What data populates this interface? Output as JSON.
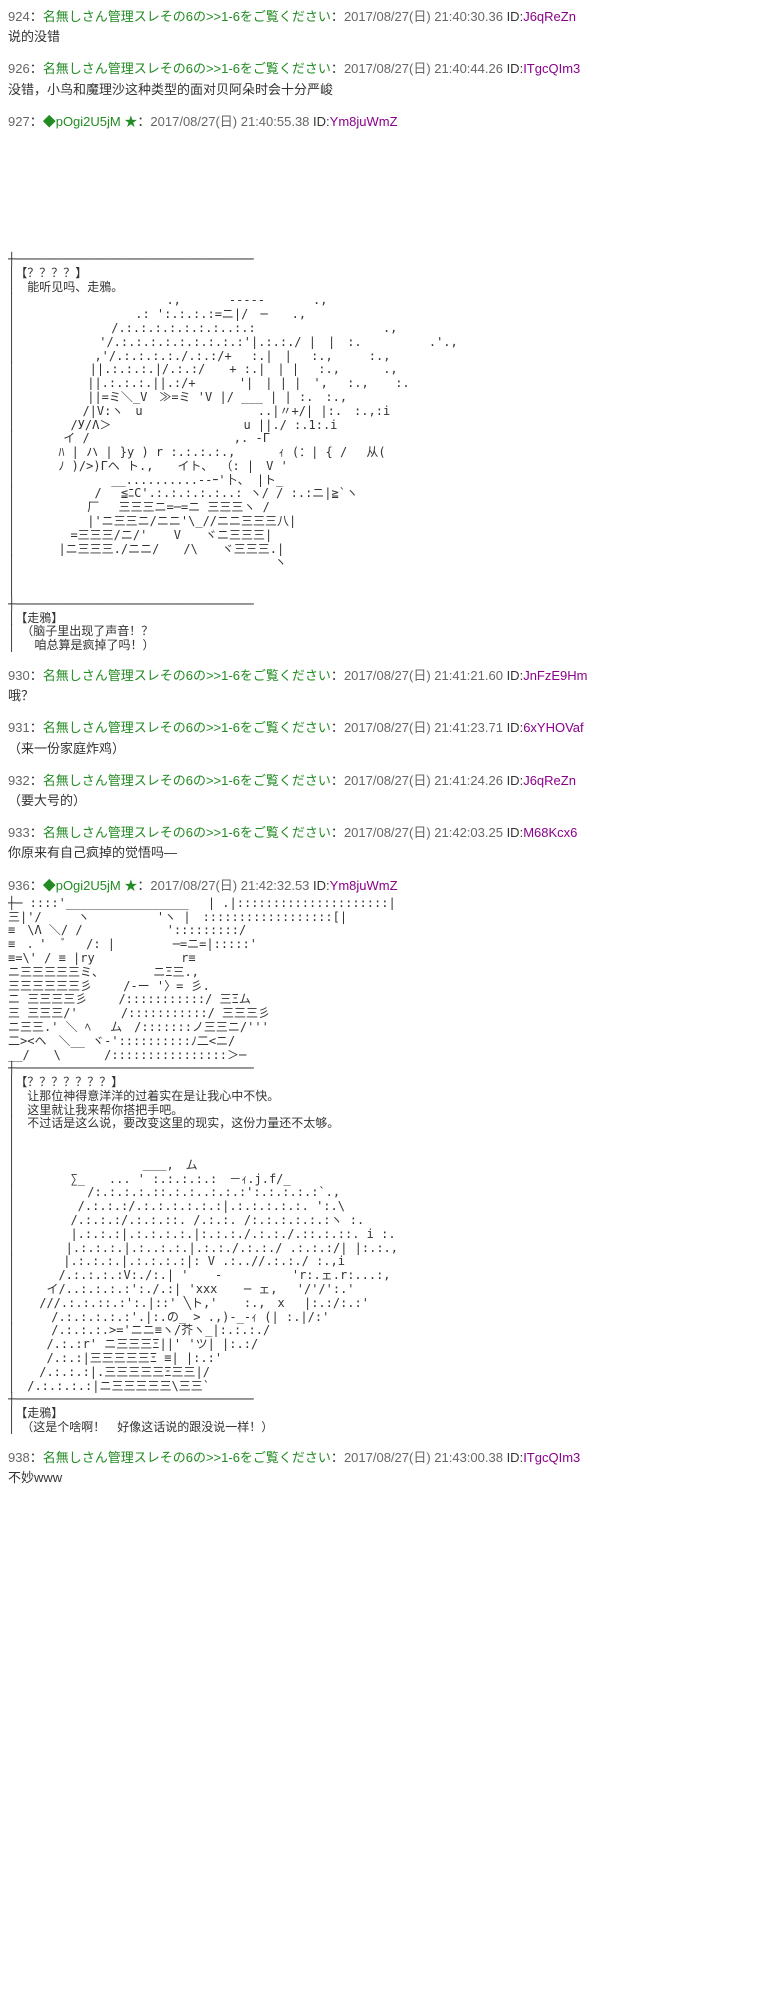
{
  "posts": [
    {
      "num": "924",
      "name": "名無しさん管理スレその6の>>1-6をご覧ください",
      "date": "2017/08/27(日) 21:40:30.36",
      "id": "J6qReZn",
      "body": "说的没错"
    },
    {
      "num": "926",
      "name": "名無しさん管理スレその6の>>1-6をご覧ください",
      "date": "2017/08/27(日) 21:40:44.26",
      "id": "ITgcQIm3",
      "body": "没错，小鸟和魔理沙这种类型的面对贝阿朵时会十分严峻"
    },
    {
      "num": "927",
      "trip": "◆pOgi2U5jM",
      "star": "★",
      "date": "2017/08/27(日) 21:40:55.38",
      "id": "Ym8juWmZ",
      "body": "",
      "hasSpacer": true,
      "aa": "┼─────────────────────────────────\n│【？？？？】\n│　能听见吗、走鴉。\n│　　　　　　　　　　　 　.,　　　　-----　　　　.,\n│　　　　　　　　　　.: ':.:.:.:=ニ|/　─　　.,\n│　　　　　　　　/.:.:.:.:.:.:.:..:.: 　　　　　　　　　　.,\n│　　　　　　　'/.:.:.:.:.:.:.:.:.:'|.:.:./ |　|　:. 　　　　　.'.,\n│　　　　　　 ,'/.:.:.:.:./.:.:/+　 :.|　| 　:.,　　　:.,\n│　　　　 　 ||.:.:.:.|/.:.:/　　+ :.|　| | 　:.,　　　 .,\n│　　　　　　||.:.:.:.||.:/+　　　 '|　| | |　',　 :., 　 :.\n│　　　　　　||=ミ＼_V　≫=ミ 'V |/ ___ | | :.　:.,\n│　　　　　 /|V:ヽ　u　　　　　　　　　 ..|〃+/| |:.　:.,:i\n│　　　　 /У/Λ＞　　　　 　 　 　 　 u ||./ :.1:.i\n│　　　　イ /　　　　　 　 　 　 　 ,. -Γ\n│　　　 ﾊ | ハ | }y ) r :.:.:.:.,　　　 ｨ (：| { /　 从(\n│　　　 ﾉ )/>)Γヘ ト.,　　イト、 （: |　V '\n│　　　　　　　　__..........--ｰ'卜、 |ト_\n│　　　　　　 / 　≦ﾆC'.:.:.:.:.:..: ヽ/ / :.:ニ|≧`ヽ\n│　　　　　　厂 　三三三ニ=─=ニ 三三三ヽ / \n│　　　　　　|'ニ三三ニ/ニニ'\\_//ニニ三三三八|\n│　　　　 =三三三/ニ/'  　V　　ヾニ三三三|\n│　　　 |ニ三三三./ニニ/　　/\\　　ヾ三三三.|\n│　　　　　 　　　　　　　　　　　　　　　　ヽ\n│　　　　　　　　　　　　　　　　　　　　　　　\n│　　　　　　　　　　　　　　　　　　\n┼─────────────────────────────────\n│【走鴉】\n│　（脑子里出现了声音！？\n│　 咱总算是疯掉了吗！）"
    },
    {
      "num": "930",
      "name": "名無しさん管理スレその6の>>1-6をご覧ください",
      "date": "2017/08/27(日) 21:41:21.60",
      "id": "JnFzE9Hm",
      "body": "哦？"
    },
    {
      "num": "931",
      "name": "名無しさん管理スレその6の>>1-6をご覧ください",
      "date": "2017/08/27(日) 21:41:23.71",
      "id": "6xYHOVaf",
      "body": "（来一份家庭炸鸡）"
    },
    {
      "num": "932",
      "name": "名無しさん管理スレその6の>>1-6をご覧ください",
      "date": "2017/08/27(日) 21:41:24.26",
      "id": "J6qReZn",
      "body": "（要大号的）"
    },
    {
      "num": "933",
      "name": "名無しさん管理スレその6の>>1-6をご覧ください",
      "date": "2017/08/27(日) 21:42:03.25",
      "id": "M68Kcx6",
      "body": "你原来有自己疯掉的觉悟吗—"
    },
    {
      "num": "936",
      "trip": "◆pOgi2U5jM",
      "star": "★",
      "date": "2017/08/27(日) 21:42:32.53",
      "id": "Ym8juWmZ",
      "body": "",
      "aa": "┼─ ::::'_________________　 | .|:::::::::::::::::::::|\n三|'/　　　ヽ　　　　 　'ヽ |　::::::::::::::::::[|\n≡　\\Λ ＼/ / 　 　 　 　 ':::::::::/\n≡　．'  ﾞ 　/: |　  　　 ─=ニ=|:::::'\n≡=\\' / ≡ |ry 　 　　　　　r≡\nニ三三三三三ミ、　　　 　ニΞ三.,\n三三三三三三彡　 　/-ー '〉= 彡.\nニ 三三三三彡　　 /:::::::::::/ 三Ξム \n三 三三三/'　　　 /:::::::::::/ 三三三彡\nニ三三.' ＼ ﾍ　 ム　/:::::::ノ三三ニ/'''\n二><ヘ　＼__ ヾ-'::::::::::ﾉ二<ニ/\n__/　　\\　　　 /::::::::::::::::＞─\n┼─────────────────────────────────\n│【？？？？？？？】\n│　让那位神得意洋洋的过着实在是让我心中不快。\n│　这里就让我来帮你搭把手吧。\n│　不过话是这么说，要改变这里的现实，这份力量还不太够。\n│\n│\n│　　　　　　　　　　 ＿＿,　ム\n│　　　　 ∑_　　... ' :.:.:.:.:　－ｨ.j.f/_\n│　　　　　　/:.:.:.:.::.:.:..:.:.:':.:.:.:.:`.,\n│　　　 　 /.:.:.:/.:.:.:.:.:.:|.:.:.:.:.:. ':.\\\n│　　　 　/.:.:.:/.:.:.::. /.:.:. /:.:.:.:.:.:ヽ :.\n│　　　　 |.:.:.:|.:.:.:.:.|:.:.:./.:.:./.::.:.::. i :.\n│　　 　 |.:.:.:.|.:..:.:.|.:.:./.:.:./ .:.:.:/| |:.:.,\n│　　　　|.:.:.:.|.:.:.:.:|: V .:..//.:.:./ :.,i\n│　　　 /.:.:.:.:V:./:.| ' 　 - 　　　 　 'r:.ェ.r:...:,\n│　　 イ/..:.:.:.:':./.:| 'xxx 　 ─ ェ,　 '/'/':.'\n│　　///.:.:.::.:':.|::' ╲ト,' 　 :.,　x　 |:.:/:.:'\n│　　　/.:.:.:.:.:'.|:.の_ > .,)-_-ｨ (| :.|/:'\n│　　　/.:.:.:.>='ニニ≡ヽ/芥ヽ_|:.:.:./\n│　　 /.:.:r' ニ三三三Ξ||' 'ツ| |:.:/\n│　　 /.:.:|三三三三三Ξ ≡| |:.:'\n│　　/.:.:.:|.三三三三三Ξ三三|/\n│　/.:.:.:.:|ニ三三三三三\\三三`\n┼─────────────────────────────────\n│【走鴉】\n│　（这是个啥啊！　好像这话说的跟没说一样！）"
    },
    {
      "num": "938",
      "name": "名無しさん管理スレその6の>>1-6をご覧ください",
      "date": "2017/08/27(日) 21:43:00.38",
      "id": "ITgcQIm3",
      "body": "不妙www"
    }
  ]
}
